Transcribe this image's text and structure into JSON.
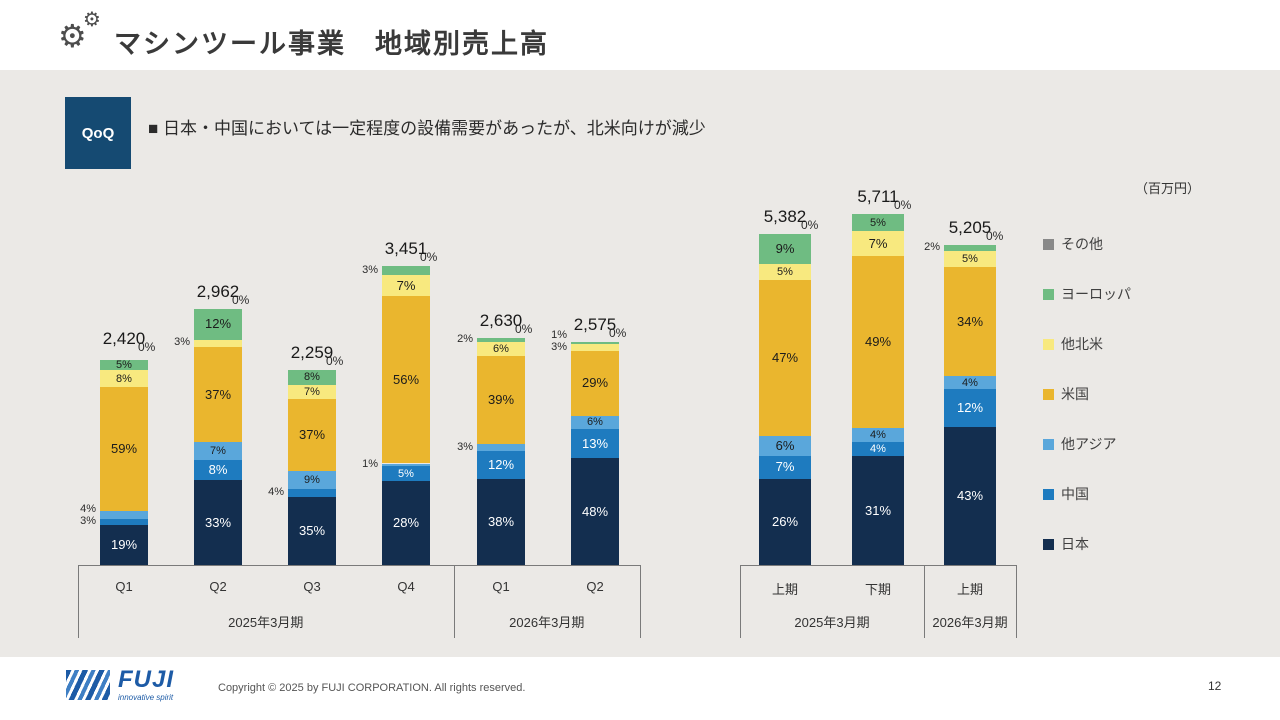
{
  "header": {
    "title": "マシンツール事業　地域別売上高"
  },
  "callout": {
    "badge": "QoQ",
    "text": "■ 日本・中国においては一定程度の設備需要があったが、北米向けが減少"
  },
  "unit_label": "（百万円）",
  "colors": {
    "background": "#ebe9e6",
    "badge": "#154a72",
    "axis": "#7a7a7a"
  },
  "legend": [
    {
      "label": "その他",
      "color": "#898989"
    },
    {
      "label": "ヨーロッパ",
      "color": "#6fbc82"
    },
    {
      "label": "他北米",
      "color": "#f8e97f"
    },
    {
      "label": "米国",
      "color": "#eab62e"
    },
    {
      "label": "他アジア",
      "color": "#5aa7db"
    },
    {
      "label": "中国",
      "color": "#1e7bbf"
    },
    {
      "label": "日本",
      "color": "#132e4f"
    }
  ],
  "chart_data": [
    {
      "type": "bar",
      "stacked": true,
      "title": "四半期別（QoQ）",
      "unit": "百万円",
      "value_format": "percent_of_total",
      "categories": [
        "Q1",
        "Q2",
        "Q3",
        "Q4",
        "Q1",
        "Q2"
      ],
      "group_labels": [
        {
          "label": "2025年3月期",
          "span": [
            0,
            3
          ]
        },
        {
          "label": "2026年3月期",
          "span": [
            4,
            5
          ]
        }
      ],
      "totals": [
        2420,
        2962,
        2259,
        3451,
        2630,
        2575
      ],
      "series": [
        {
          "name": "日本",
          "values": [
            19,
            33,
            35,
            28,
            38,
            48
          ]
        },
        {
          "name": "中国",
          "values": [
            3,
            8,
            4,
            5,
            12,
            13
          ]
        },
        {
          "name": "他アジア",
          "values": [
            4,
            7,
            9,
            1,
            3,
            6
          ]
        },
        {
          "name": "米国",
          "values": [
            59,
            37,
            37,
            56,
            39,
            29
          ]
        },
        {
          "name": "他北米",
          "values": [
            8,
            3,
            7,
            7,
            6,
            3
          ]
        },
        {
          "name": "ヨーロッパ",
          "values": [
            5,
            12,
            8,
            3,
            2,
            1
          ]
        },
        {
          "name": "その他",
          "values": [
            0,
            0,
            0,
            0,
            0,
            0
          ]
        }
      ]
    },
    {
      "type": "bar",
      "stacked": true,
      "title": "半期別",
      "unit": "百万円",
      "value_format": "percent_of_total",
      "categories": [
        "上期",
        "下期",
        "上期"
      ],
      "group_labels": [
        {
          "label": "2025年3月期",
          "span": [
            0,
            1
          ]
        },
        {
          "label": "2026年3月期",
          "span": [
            2,
            2
          ]
        }
      ],
      "totals": [
        5382,
        5711,
        5205
      ],
      "series": [
        {
          "name": "日本",
          "values": [
            26,
            31,
            43
          ]
        },
        {
          "name": "中国",
          "values": [
            7,
            4,
            12
          ]
        },
        {
          "name": "他アジア",
          "values": [
            6,
            4,
            4
          ]
        },
        {
          "name": "米国",
          "values": [
            47,
            49,
            34
          ]
        },
        {
          "name": "他北米",
          "values": [
            5,
            7,
            5
          ]
        },
        {
          "name": "ヨーロッパ",
          "values": [
            9,
            5,
            2
          ]
        },
        {
          "name": "その他",
          "values": [
            0,
            0,
            0
          ]
        }
      ]
    }
  ],
  "footer": {
    "logo": "FUJI",
    "tagline": "innovative spirit",
    "copyright": "Copyright © 2025 by FUJI CORPORATION. All rights reserved.",
    "page": "12"
  }
}
